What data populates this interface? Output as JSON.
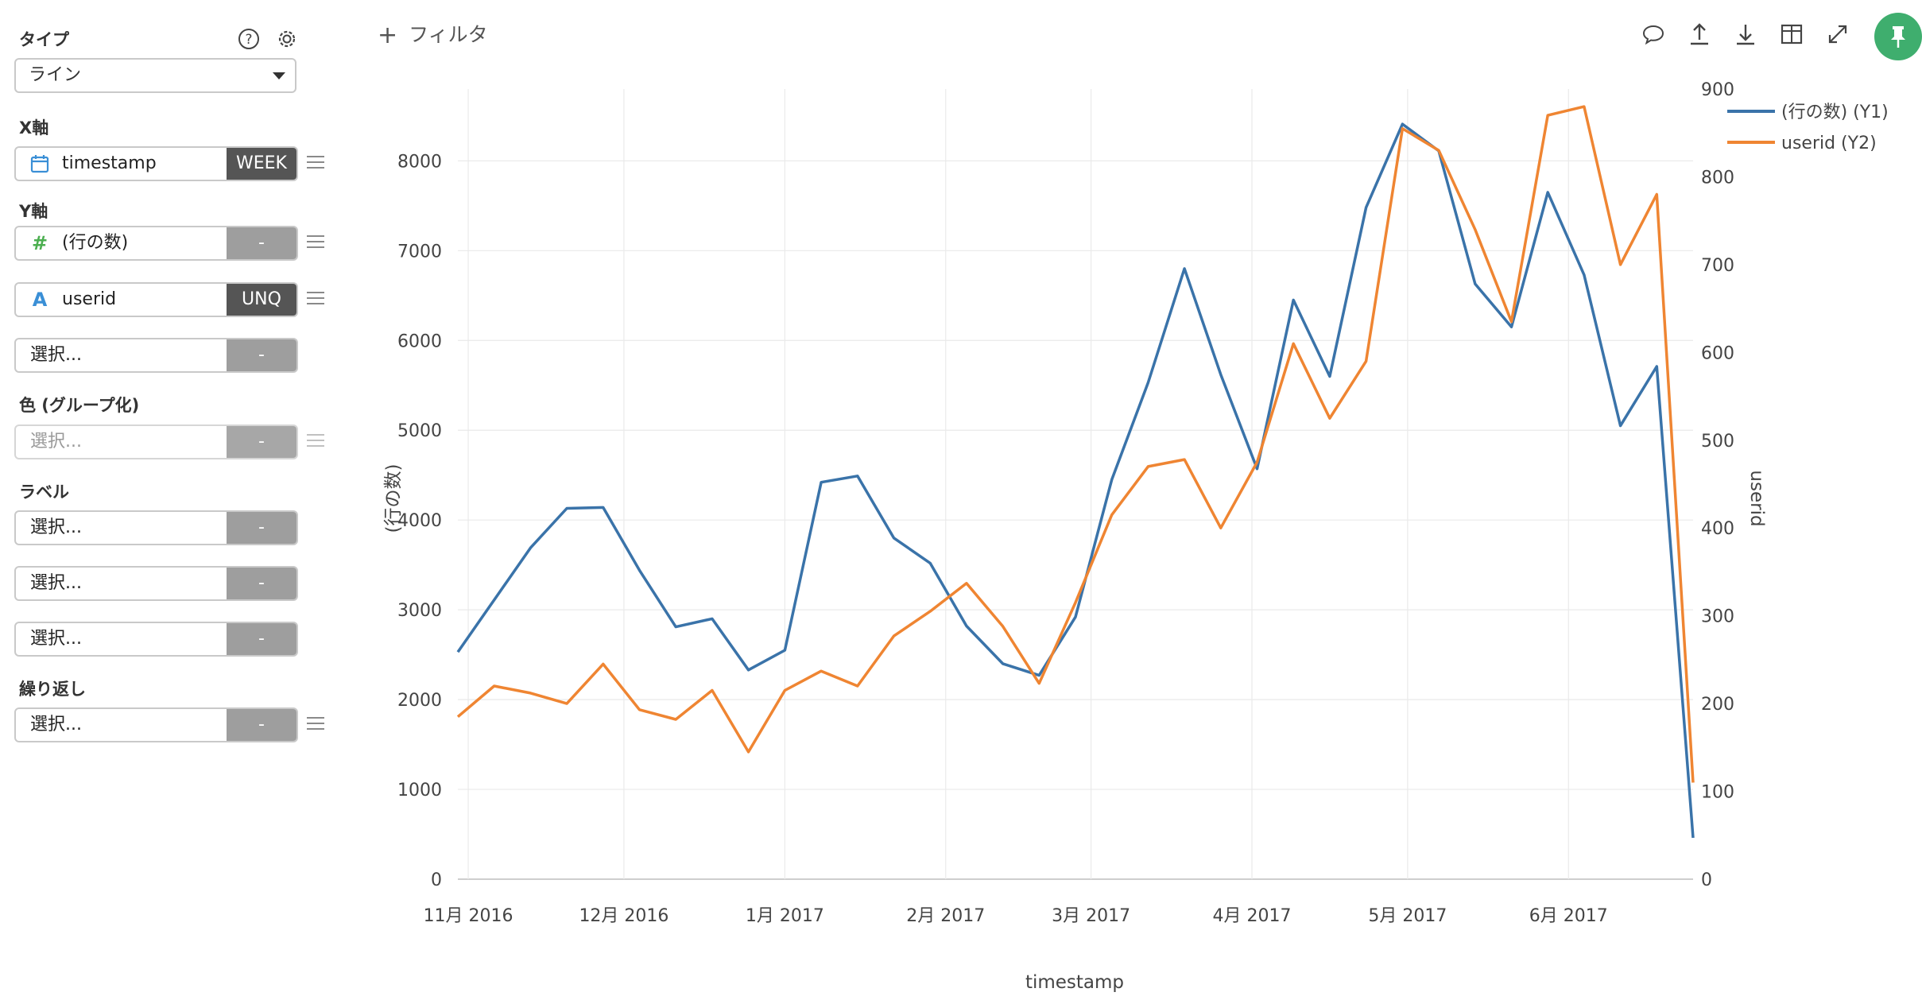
{
  "sidebar": {
    "type_label": "タイプ",
    "type_value": "ライン",
    "x_label": "X軸",
    "x_field": {
      "name": "timestamp",
      "agg": "WEEK"
    },
    "y_label": "Y軸",
    "y_fields": [
      {
        "name": "(行の数)",
        "agg": "-"
      },
      {
        "name": "userid",
        "agg": "UNQ"
      }
    ],
    "y_empty": {
      "placeholder": "選択...",
      "agg": "-"
    },
    "color_label": "色 (グループ化)",
    "color_field": {
      "placeholder": "選択...",
      "agg": "-"
    },
    "label_label": "ラベル",
    "label_fields": [
      {
        "placeholder": "選択...",
        "agg": "-"
      },
      {
        "placeholder": "選択...",
        "agg": "-"
      },
      {
        "placeholder": "選択...",
        "agg": "-"
      }
    ],
    "repeat_label": "繰り返し",
    "repeat_field": {
      "placeholder": "選択...",
      "agg": "-"
    }
  },
  "toolbar": {
    "filter_label": "フィルタ",
    "icons": [
      "comment-icon",
      "upload-icon",
      "download-icon",
      "table-icon",
      "expand-icon",
      "pin-icon"
    ]
  },
  "colors": {
    "y1": "#3a73a9",
    "y2": "#ef8532",
    "accent": "#3fae6e"
  },
  "chart_data": {
    "type": "line",
    "xlabel": "timestamp",
    "ylabel": "(行の数)",
    "y2label": "userid",
    "x_tick_labels": [
      "11月 2016",
      "12月 2016",
      "1月 2017",
      "2月 2017",
      "3月 2017",
      "4月 2017",
      "5月 2017",
      "6月 2017"
    ],
    "ylim": [
      0,
      8800
    ],
    "y_ticks": [
      0,
      1000,
      2000,
      3000,
      4000,
      5000,
      6000,
      7000,
      8000
    ],
    "y2lim": [
      0,
      900
    ],
    "y2_ticks": [
      0,
      100,
      200,
      300,
      400,
      500,
      600,
      700,
      800,
      900
    ],
    "grid": true,
    "legend_position": "top-right",
    "x": [
      "2016-10-30",
      "2016-11-06",
      "2016-11-13",
      "2016-11-20",
      "2016-11-27",
      "2016-12-04",
      "2016-12-11",
      "2016-12-18",
      "2016-12-25",
      "2017-01-01",
      "2017-01-08",
      "2017-01-15",
      "2017-01-22",
      "2017-01-29",
      "2017-02-05",
      "2017-02-12",
      "2017-02-19",
      "2017-02-26",
      "2017-03-05",
      "2017-03-12",
      "2017-03-19",
      "2017-03-26",
      "2017-04-02",
      "2017-04-09",
      "2017-04-16",
      "2017-04-23",
      "2017-04-30",
      "2017-05-07",
      "2017-05-14",
      "2017-05-21",
      "2017-05-28",
      "2017-06-04",
      "2017-06-11",
      "2017-06-18",
      "2017-06-25"
    ],
    "series": [
      {
        "name": "(行の数) (Y1)",
        "axis": "y1",
        "color": "#3a73a9",
        "values": [
          2530,
          3110,
          3690,
          4130,
          4140,
          3440,
          2810,
          2900,
          2330,
          2550,
          4420,
          4490,
          3800,
          3520,
          2820,
          2400,
          2270,
          2920,
          4450,
          5530,
          6800,
          5620,
          4570,
          6450,
          5600,
          7480,
          8410,
          8110,
          6630,
          6150,
          7650,
          6730,
          5050,
          5710,
          460
        ]
      },
      {
        "name": "userid (Y2)",
        "axis": "y2",
        "color": "#ef8532",
        "values": [
          185,
          220,
          212,
          200,
          245,
          193,
          182,
          215,
          145,
          215,
          237,
          220,
          277,
          305,
          337,
          288,
          223,
          315,
          415,
          470,
          478,
          400,
          475,
          610,
          525,
          590,
          855,
          830,
          740,
          635,
          870,
          880,
          700,
          780,
          110
        ]
      }
    ]
  }
}
